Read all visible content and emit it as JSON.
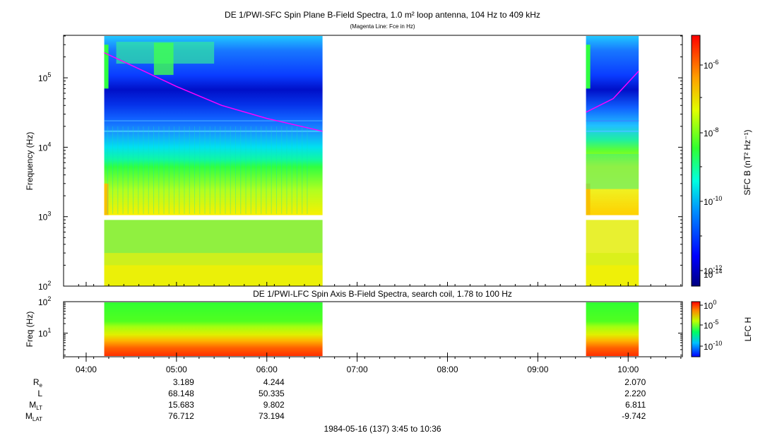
{
  "chart_data": [
    {
      "type": "heatmap",
      "title": "DE 1/PWI-SFC  Spin Plane B-Field Spectra, 1.0 m² loop antenna, 104 Hz to 409 kHz",
      "subtitle": "(Magenta Line: Fce in Hz)",
      "ylabel": "Frequency (Hz)",
      "yscale": "log",
      "ylim": [
        100,
        409000
      ],
      "y_ticks": [
        "10^2",
        "10^3",
        "10^4",
        "10^5"
      ],
      "colorbar_label": "SFC B (nT² Hz⁻¹)",
      "colorbar_ticks": [
        "10^-6",
        "10^-8",
        "10^-10",
        "10^-12",
        "10^-14"
      ],
      "colorscale": "rainbow",
      "data_segments": [
        {
          "start": "04:12",
          "end": "06:37"
        },
        {
          "start": "09:32",
          "end": "10:07"
        }
      ],
      "fce_line": [
        {
          "time": "04:12",
          "freq": 230000
        },
        {
          "time": "04:40",
          "freq": 120000
        },
        {
          "time": "05:00",
          "freq": 75000
        },
        {
          "time": "05:30",
          "freq": 40000
        },
        {
          "time": "06:00",
          "freq": 26000
        },
        {
          "time": "06:37",
          "freq": 17000
        },
        {
          "time": "09:32",
          "freq": 32000
        },
        {
          "time": "09:50",
          "freq": 50000
        },
        {
          "time": "10:07",
          "freq": 125000
        }
      ]
    },
    {
      "type": "heatmap",
      "title": "DE 1/PWI-LFC  Spin Axis B-Field Spectra, search coil, 1.78 to 100 Hz",
      "ylabel": "Freq (Hz)",
      "yscale": "log",
      "ylim": [
        1.78,
        100
      ],
      "y_ticks": [
        "10^1",
        "10^2"
      ],
      "colorbar_label": "LFC H",
      "colorbar_ticks": [
        "10^0",
        "10^-5",
        "10^-10"
      ],
      "data_segments": [
        {
          "start": "04:12",
          "end": "06:37"
        },
        {
          "start": "09:32",
          "end": "10:07"
        }
      ]
    }
  ],
  "x_axis": {
    "ticks": [
      "04:00",
      "05:00",
      "06:00",
      "07:00",
      "08:00",
      "09:00",
      "10:00"
    ],
    "range": [
      "03:45",
      "10:36"
    ]
  },
  "ephemeris": {
    "rows": [
      {
        "label": "R",
        "sub": "e",
        "values": [
          "3.189",
          "4.244",
          "2.070"
        ]
      },
      {
        "label": "L",
        "sub": "",
        "values": [
          "68.148",
          "50.335",
          "2.220"
        ]
      },
      {
        "label": "M",
        "sub": "LT",
        "values": [
          "15.683",
          "9.802",
          "6.811"
        ]
      },
      {
        "label": "M",
        "sub": "LAT",
        "values": [
          "76.712",
          "73.194",
          "-9.742"
        ]
      }
    ],
    "value_times": [
      "05:00",
      "06:00",
      "10:00"
    ]
  },
  "footer": "1984-05-16 (137) 3:45 to 10:36",
  "colors": {
    "fce_line": "#ff00ff"
  }
}
